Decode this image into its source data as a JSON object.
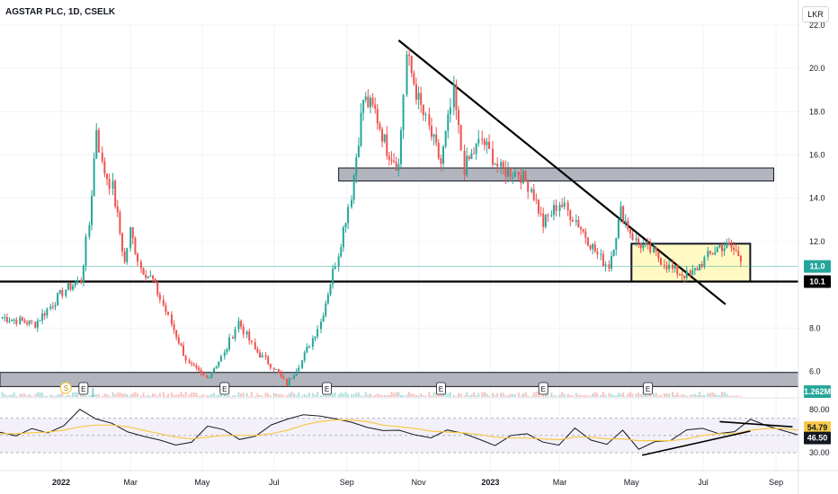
{
  "header": {
    "title": "AGSTAR PLC, 1D, CSELK",
    "currency": "LKR"
  },
  "colors": {
    "up": "#26a69a",
    "down": "#ef5350",
    "rsi": "#131722",
    "rsi_ma": "#f7c948",
    "box_fill": "#fff9c4",
    "zone_fill": "#b2b5be"
  },
  "chart_data": [
    {
      "type": "candlestick",
      "title": "AGSTAR PLC, 1D, CSELK",
      "x_tick_labels": [
        "2022",
        "Mar",
        "May",
        "Jul",
        "Sep",
        "Nov",
        "2023",
        "Mar",
        "May",
        "Jul",
        "Sep"
      ],
      "y_tick_labels": [
        "22.0",
        "20.0",
        "18.0",
        "16.0",
        "14.0",
        "12.0",
        "10.0",
        "8.0",
        "6.0"
      ],
      "ylim": [
        4.9,
        22.0
      ],
      "xlim": [
        "2021-11-10",
        "2023-09-20"
      ],
      "grid": true,
      "price_labels": {
        "last": "11.0",
        "support": "10.1",
        "volume": "1.262M"
      },
      "close_points": [
        [
          "2021-11-12",
          8.5
        ],
        [
          "2021-12-10",
          8.2
        ],
        [
          "2022-01-05",
          9.8
        ],
        [
          "2022-01-18",
          10.2
        ],
        [
          "2022-01-25",
          12.8
        ],
        [
          "2022-01-31",
          17.3
        ],
        [
          "2022-02-05",
          15.5
        ],
        [
          "2022-02-14",
          14.5
        ],
        [
          "2022-02-24",
          11.0
        ],
        [
          "2022-03-01",
          12.5
        ],
        [
          "2022-03-10",
          10.8
        ],
        [
          "2022-03-20",
          10.2
        ],
        [
          "2022-04-05",
          8.2
        ],
        [
          "2022-04-20",
          6.3
        ],
        [
          "2022-05-05",
          5.7
        ],
        [
          "2022-05-20",
          6.8
        ],
        [
          "2022-06-01",
          8.3
        ],
        [
          "2022-06-15",
          7.0
        ],
        [
          "2022-07-01",
          6.2
        ],
        [
          "2022-07-12",
          5.4
        ],
        [
          "2022-07-25",
          6.5
        ],
        [
          "2022-08-10",
          8.3
        ],
        [
          "2022-08-25",
          11.5
        ],
        [
          "2022-09-05",
          14.2
        ],
        [
          "2022-09-15",
          18.6
        ],
        [
          "2022-09-25",
          18.0
        ],
        [
          "2022-10-05",
          16.3
        ],
        [
          "2022-10-15",
          15.5
        ],
        [
          "2022-10-22",
          20.6
        ],
        [
          "2022-11-01",
          18.5
        ],
        [
          "2022-11-10",
          17.2
        ],
        [
          "2022-11-20",
          15.6
        ],
        [
          "2022-12-01",
          18.8
        ],
        [
          "2022-12-10",
          15.4
        ],
        [
          "2022-12-25",
          16.7
        ],
        [
          "2023-01-10",
          15.3
        ],
        [
          "2023-01-25",
          15.2
        ],
        [
          "2023-02-05",
          14.5
        ],
        [
          "2023-02-15",
          12.8
        ],
        [
          "2023-03-01",
          13.8
        ],
        [
          "2023-03-15",
          13.0
        ],
        [
          "2023-03-25",
          12.1
        ],
        [
          "2023-04-05",
          11.2
        ],
        [
          "2023-04-12",
          10.9
        ],
        [
          "2023-04-22",
          13.4
        ],
        [
          "2023-05-05",
          12.0
        ],
        [
          "2023-05-20",
          11.5
        ],
        [
          "2023-06-05",
          10.7
        ],
        [
          "2023-06-20",
          10.4
        ],
        [
          "2023-07-05",
          11.3
        ],
        [
          "2023-07-15",
          11.8
        ],
        [
          "2023-07-25",
          11.7
        ],
        [
          "2023-08-05",
          11.2
        ]
      ]
    },
    {
      "type": "line",
      "title": "",
      "y_tick_labels": [
        "80.00",
        "30.00"
      ],
      "ylim": [
        30,
        80
      ],
      "series": [
        {
          "values": [
            54,
            48,
            58,
            52,
            60,
            82,
            70,
            64,
            55,
            48,
            44,
            38,
            42,
            60,
            55,
            46,
            50,
            62,
            68,
            72,
            74,
            70,
            66,
            60,
            55,
            58,
            50,
            48,
            56,
            52,
            44,
            38,
            48,
            50,
            42,
            40,
            60,
            46,
            38,
            54,
            36,
            42,
            46,
            56,
            60,
            50,
            54,
            68,
            62,
            56,
            52
          ]
        },
        {
          "values": [
            52,
            52,
            53,
            54,
            56,
            60,
            62,
            62,
            60,
            56,
            52,
            48,
            46,
            48,
            50,
            50,
            50,
            52,
            56,
            62,
            66,
            68,
            68,
            66,
            62,
            60,
            58,
            55,
            54,
            53,
            51,
            48,
            47,
            47,
            46,
            45,
            48,
            48,
            46,
            46,
            44,
            44,
            44,
            46,
            50,
            52,
            52,
            56,
            58,
            58,
            56
          ]
        }
      ],
      "value_labels": {
        "rsi": "46.50",
        "rsi_ma": "54.79"
      }
    }
  ]
}
